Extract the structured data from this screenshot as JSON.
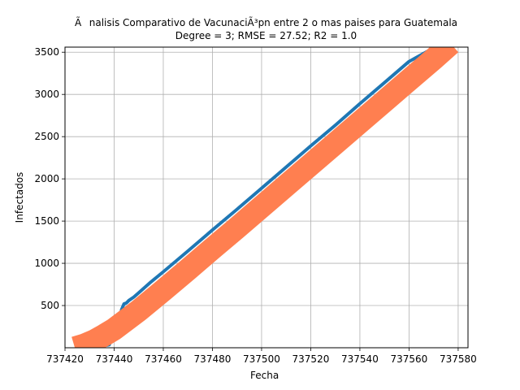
{
  "chart_data": {
    "type": "line",
    "title": "Ãnalisis Comparativo de VacunaciÃ³pn entre 2 o mas paises para Guatemala",
    "subtitle": "Degree = 3; RMSE = 27.52; R2 = 1.0",
    "xlabel": "Fecha",
    "ylabel": "Infectados",
    "xlim": [
      737420,
      737584
    ],
    "ylim": [
      0,
      3560
    ],
    "x_ticks": [
      737420,
      737440,
      737460,
      737480,
      737500,
      737520,
      737540,
      737560,
      737580
    ],
    "y_ticks": [
      500,
      1000,
      1500,
      2000,
      2500,
      3000,
      3500
    ],
    "grid": true,
    "series": [
      {
        "color": "#1f77b4",
        "x": [
          737424,
          737426,
          737428,
          737430,
          737432,
          737434,
          737436,
          737438,
          737440,
          737442,
          737443,
          737444,
          737445,
          737446,
          737448,
          737450,
          737455,
          737460,
          737470,
          737480,
          737490,
          737500,
          737510,
          737520,
          737530,
          737540,
          737550,
          737560,
          737570,
          737577
        ],
        "y": [
          15,
          10,
          8,
          10,
          15,
          20,
          25,
          35,
          160,
          320,
          450,
          520,
          530,
          560,
          600,
          650,
          780,
          900,
          1145,
          1395,
          1640,
          1890,
          2140,
          2390,
          2635,
          2890,
          3140,
          3390,
          3550,
          3580
        ]
      },
      {
        "color": "#ff7f50",
        "x": [
          737424,
          737428,
          737432,
          737436,
          737440,
          737445,
          737450,
          737455,
          737460,
          737470,
          737480,
          737490,
          737500,
          737510,
          737520,
          737530,
          737540,
          737550,
          737560,
          737570,
          737577
        ],
        "y": [
          0,
          35,
          85,
          150,
          220,
          330,
          440,
          560,
          680,
          925,
          1175,
          1420,
          1670,
          1920,
          2170,
          2420,
          2670,
          2920,
          3170,
          3420,
          3600
        ]
      }
    ]
  }
}
